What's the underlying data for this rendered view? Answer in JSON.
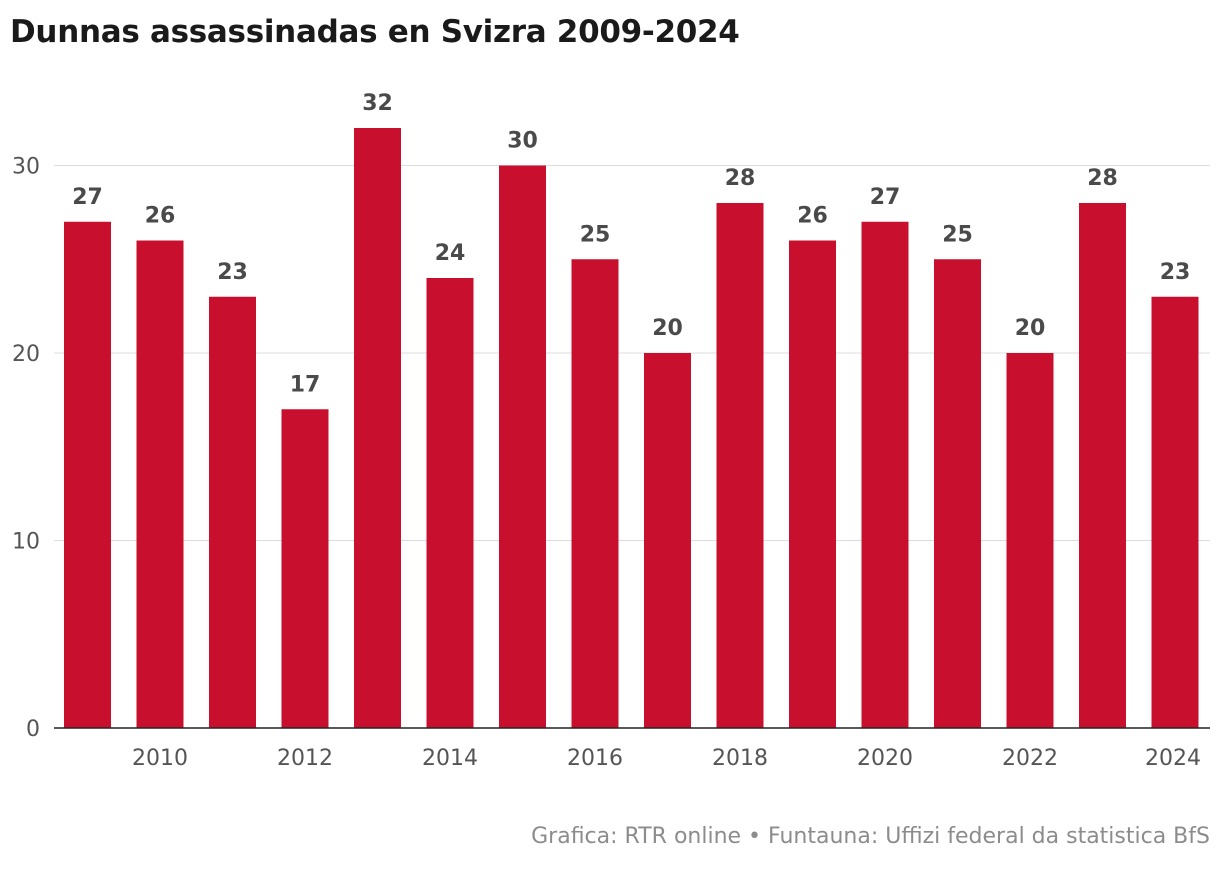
{
  "chart_data": {
    "type": "bar",
    "title": "Dunnas assassinadas en Svizra 2009-2024",
    "x": [
      2009,
      2010,
      2011,
      2012,
      2013,
      2014,
      2015,
      2016,
      2017,
      2018,
      2019,
      2020,
      2021,
      2022,
      2023,
      2024
    ],
    "values": [
      27,
      26,
      23,
      17,
      32,
      24,
      30,
      25,
      20,
      28,
      26,
      27,
      25,
      20,
      28,
      23
    ],
    "x_tick_labels": [
      "2010",
      "2012",
      "2014",
      "2016",
      "2018",
      "2020",
      "2022",
      "2024"
    ],
    "y_ticks": [
      0,
      10,
      20,
      30
    ],
    "ylim": [
      0,
      34
    ],
    "xlabel": "",
    "ylabel": "",
    "grid": true,
    "data_labels": true,
    "bar_color": "#c8102e",
    "source": "Grafica: RTR online • Funtauna: Uffizi federal da statistica BfS"
  }
}
